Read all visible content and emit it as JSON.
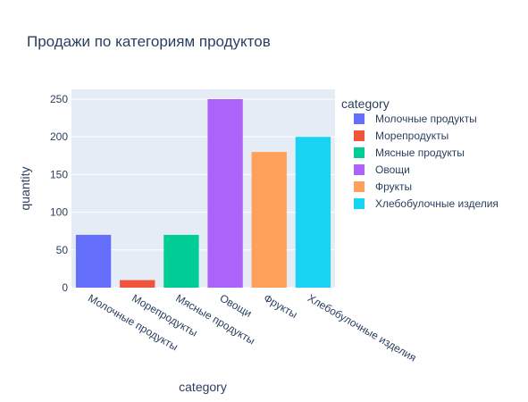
{
  "chart_data": {
    "type": "bar",
    "title": "Продажи по категориям продуктов",
    "xlabel": "category",
    "ylabel": "quantity",
    "categories": [
      "Молочные продукты",
      "Морепродукты",
      "Мясные продукты",
      "Овощи",
      "Фрукты",
      "Хлебобулочные изделия"
    ],
    "values": [
      70,
      10,
      70,
      250,
      180,
      200
    ],
    "colors": [
      "#636efa",
      "#EF553B",
      "#00cc96",
      "#ab63fa",
      "#FFA15A",
      "#19d3f3"
    ],
    "ylim": [
      0,
      263
    ],
    "yticks": [
      0,
      50,
      100,
      150,
      200,
      250
    ],
    "grid": true,
    "legend_title": "category",
    "legend_position": "right",
    "plot_background": "#e5ecf6"
  }
}
